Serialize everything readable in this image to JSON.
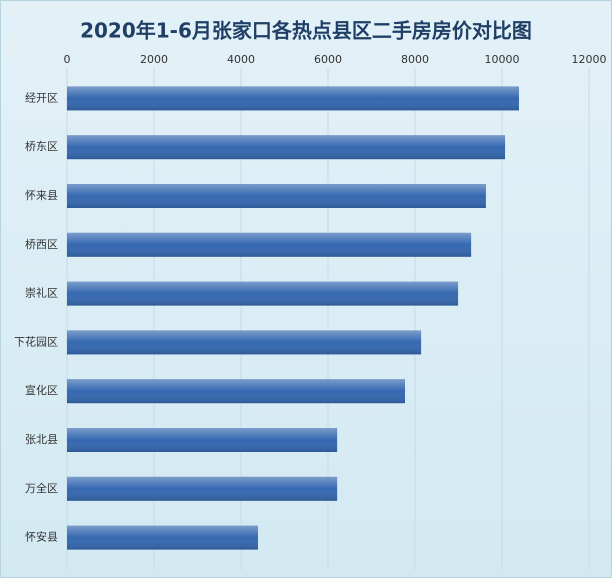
{
  "chart_data": {
    "type": "bar",
    "orientation": "horizontal",
    "title": "2020年1-6月张家口各热点县区二手房房价对比图",
    "categories": [
      "经开区",
      "桥东区",
      "怀来县",
      "桥西区",
      "崇礼区",
      "下花园区",
      "宣化区",
      "张北县",
      "万全区",
      "怀安县"
    ],
    "values": [
      10390,
      10070,
      9630,
      9290,
      8990,
      8140,
      7770,
      6210,
      6210,
      4390
    ],
    "color": "#3568b0",
    "xlim": [
      0,
      12000
    ],
    "xticks": [
      0,
      2000,
      4000,
      6000,
      8000,
      10000,
      12000
    ],
    "grid": true
  }
}
